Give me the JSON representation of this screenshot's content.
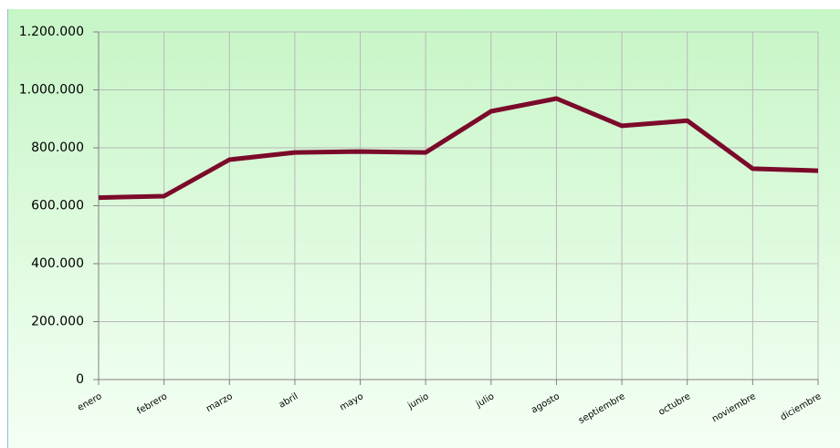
{
  "chart_data": {
    "type": "line",
    "categories": [
      "enero",
      "febrero",
      "marzo",
      "abril",
      "mayo",
      "junio",
      "julio",
      "agosto",
      "septiembre",
      "octubre",
      "noviembre",
      "diciembre"
    ],
    "series": [
      {
        "name": null,
        "color": "#7b0a2a",
        "values": [
          628000,
          633000,
          759000,
          784000,
          787000,
          784000,
          926000,
          970000,
          876000,
          894000,
          728000,
          721000
        ]
      }
    ],
    "ylim": [
      0,
      1200000
    ],
    "yticks": [
      0,
      {
        "value": 200000,
        "label": "200.000"
      },
      {
        "value": 400000,
        "label": "400.000"
      },
      {
        "value": 600000,
        "label": "600.000"
      },
      {
        "value": 800000,
        "label": "800.000"
      },
      {
        "value": 1000000,
        "label": "1.000.000"
      },
      {
        "value": 1200000,
        "label": "1.200.000"
      }
    ],
    "grid": true
  }
}
